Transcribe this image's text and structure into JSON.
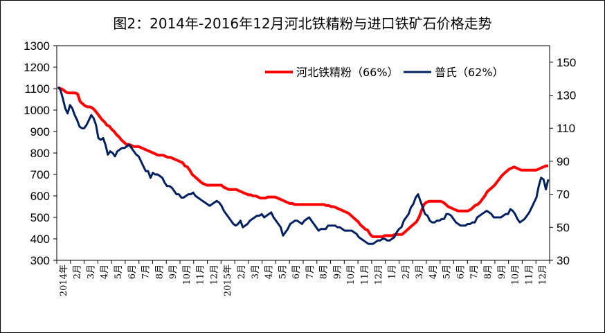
{
  "title": "图2：2014年-2016年12月河北铁精粉与进口铁矿石价格走势",
  "chart_data": {
    "type": "line",
    "title": "图2：2014年-2016年12月河北铁精粉与进口铁矿石价格走势",
    "x_labels": [
      "2014年",
      "2月",
      "3月",
      "4月",
      "5月",
      "6月",
      "7月",
      "8月",
      "9月",
      "10月",
      "11月",
      "12月",
      "2015年",
      "2月",
      "3月",
      "4月",
      "5月",
      "6月",
      "7月",
      "8月",
      "9月",
      "10月",
      "11月",
      "12月",
      "1月",
      "2月",
      "3月",
      "4月",
      "5月",
      "6月",
      "7月",
      "8月",
      "9月",
      "10月",
      "11月",
      "12月"
    ],
    "y_left": {
      "min": 300,
      "max": 1300,
      "ticks": [
        300,
        400,
        500,
        600,
        700,
        800,
        900,
        1000,
        1100,
        1200,
        1300
      ]
    },
    "y_right": {
      "min": 30,
      "max": 160,
      "ticks": [
        30,
        50,
        70,
        90,
        110,
        130,
        150
      ]
    },
    "legend_position": "top-right",
    "grid": false,
    "series": [
      {
        "name": "河北铁精粉（66%）",
        "axis": "left",
        "color": "#ff0000",
        "values": [
          1105,
          1100,
          1095,
          1085,
          1080,
          1080,
          1080,
          1080,
          1075,
          1040,
          1030,
          1020,
          1015,
          1015,
          1010,
          1000,
          985,
          970,
          955,
          945,
          930,
          925,
          910,
          900,
          885,
          875,
          860,
          850,
          840,
          840,
          835,
          830,
          830,
          830,
          825,
          820,
          815,
          810,
          805,
          800,
          795,
          790,
          790,
          790,
          785,
          780,
          780,
          775,
          770,
          765,
          760,
          755,
          740,
          735,
          720,
          700,
          690,
          680,
          670,
          660,
          655,
          650,
          650,
          650,
          650,
          650,
          650,
          650,
          640,
          635,
          630,
          630,
          630,
          630,
          625,
          620,
          615,
          610,
          605,
          605,
          600,
          600,
          595,
          590,
          590,
          590,
          595,
          595,
          595,
          595,
          590,
          585,
          580,
          575,
          570,
          565,
          565,
          560,
          560,
          560,
          560,
          560,
          560,
          560,
          560,
          560,
          560,
          560,
          560,
          560,
          555,
          555,
          550,
          550,
          545,
          540,
          535,
          530,
          525,
          520,
          510,
          500,
          490,
          480,
          465,
          455,
          445,
          440,
          420,
          410,
          410,
          410,
          410,
          410,
          415,
          415,
          415,
          415,
          420,
          420,
          420,
          420,
          430,
          440,
          450,
          460,
          470,
          480,
          500,
          530,
          560,
          570,
          575,
          575,
          575,
          575,
          575,
          575,
          570,
          560,
          550,
          545,
          540,
          535,
          530,
          530,
          530,
          530,
          530,
          535,
          545,
          555,
          560,
          570,
          585,
          600,
          620,
          630,
          640,
          650,
          665,
          680,
          695,
          705,
          715,
          725,
          730,
          735,
          730,
          725,
          720,
          720,
          720,
          720,
          720,
          720,
          720,
          725,
          730,
          735,
          740,
          740
        ]
      },
      {
        "name": "普氏（62%）",
        "axis": "right",
        "color": "#002060",
        "values": [
          135,
          133,
          128,
          122,
          119,
          124,
          122,
          118,
          115,
          111,
          110,
          110,
          112,
          115,
          118,
          116,
          112,
          104,
          103,
          104,
          100,
          94,
          96,
          95,
          93,
          96,
          97,
          98,
          98,
          99,
          100,
          98,
          96,
          94,
          93,
          90,
          87,
          84,
          84,
          80,
          83,
          82,
          82,
          81,
          80,
          77,
          75,
          75,
          74,
          72,
          70,
          70,
          68,
          68,
          69,
          70,
          70,
          71,
          69,
          68,
          67,
          66,
          65,
          64,
          63,
          64,
          65,
          66,
          65,
          63,
          60,
          58,
          56,
          54,
          52,
          51,
          52,
          54,
          50,
          51,
          52,
          54,
          55,
          56,
          57,
          57,
          58,
          56,
          57,
          58,
          59,
          56,
          54,
          52,
          50,
          45,
          47,
          49,
          52,
          53,
          54,
          54,
          53,
          52,
          54,
          55,
          56,
          54,
          52,
          50,
          48,
          49,
          49,
          49,
          51,
          51,
          51,
          51,
          50,
          50,
          49,
          48,
          48,
          48,
          48,
          47,
          46,
          44,
          43,
          42,
          41,
          40,
          40,
          40,
          41,
          42,
          42,
          43,
          43,
          42,
          42,
          43,
          44,
          47,
          49,
          50,
          54,
          56,
          58,
          62,
          64,
          68,
          70,
          66,
          62,
          58,
          57,
          54,
          53,
          53,
          54,
          54,
          55,
          55,
          58,
          58,
          57,
          55,
          53,
          52,
          51,
          51,
          51,
          52,
          52,
          53,
          53,
          56,
          57,
          58,
          59,
          60,
          59,
          58,
          56,
          56,
          56,
          56,
          57,
          58,
          58,
          61,
          60,
          58,
          55,
          53,
          54,
          55,
          57,
          59,
          62,
          65,
          68,
          75,
          80,
          79,
          73,
          79
        ]
      }
    ]
  }
}
